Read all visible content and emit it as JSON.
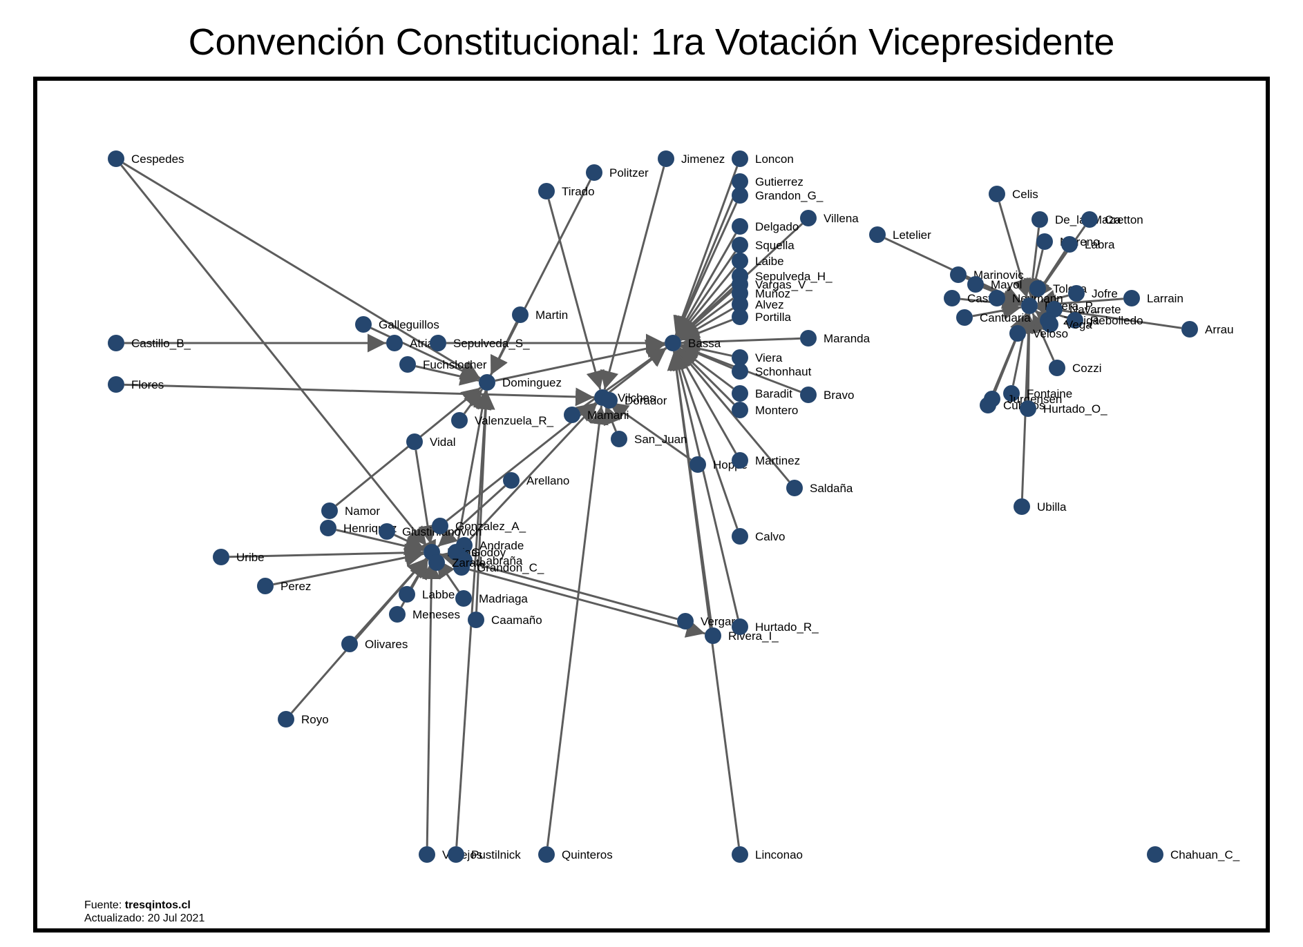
{
  "title": "Convención Constitucional: 1ra Votación Vicepresidente",
  "source": {
    "label": "Fuente: ",
    "site": "tresqintos.cl",
    "updated": "Actualizado: 20 Jul 2021"
  },
  "colors": {
    "node": "#25466e",
    "edge": "#5c5c5c"
  },
  "nodes": [
    {
      "id": "Cespedes",
      "label": "Cespedes"
    },
    {
      "id": "Castillo_B_",
      "label": "Castillo_B_"
    },
    {
      "id": "Flores",
      "label": "Flores"
    },
    {
      "id": "Galleguillos",
      "label": "Galleguillos"
    },
    {
      "id": "Atria",
      "label": "Atria"
    },
    {
      "id": "Sepulveda_S_",
      "label": "Sepulveda_S_"
    },
    {
      "id": "Fuchslocher",
      "label": "Fuchslocher"
    },
    {
      "id": "Dominguez",
      "label": "Dominguez"
    },
    {
      "id": "Martin",
      "label": "Martin"
    },
    {
      "id": "Politzer",
      "label": "Politzer"
    },
    {
      "id": "Tirado",
      "label": "Tirado"
    },
    {
      "id": "Jimenez",
      "label": "Jimenez"
    },
    {
      "id": "Loncon",
      "label": "Loncon"
    },
    {
      "id": "Gutierrez",
      "label": "Gutierrez"
    },
    {
      "id": "Grandon_G_",
      "label": "Grandon_G_"
    },
    {
      "id": "Villena",
      "label": "Villena"
    },
    {
      "id": "Delgado",
      "label": "Delgado"
    },
    {
      "id": "Squella",
      "label": "Squella"
    },
    {
      "id": "Labe",
      "label": "Laibe"
    },
    {
      "id": "Sepulveda_H_",
      "label": "Sepulveda_H_"
    },
    {
      "id": "Vargas_V_",
      "label": "Vargas_V_"
    },
    {
      "id": "Munoz",
      "label": "Muñoz"
    },
    {
      "id": "Alvez",
      "label": "Alvez"
    },
    {
      "id": "Portilla",
      "label": "Portilla"
    },
    {
      "id": "Bassa",
      "label": "Bassa"
    },
    {
      "id": "Maranda",
      "label": "Maranda"
    },
    {
      "id": "Bravo",
      "label": "Bravo"
    },
    {
      "id": "Baradit",
      "label": "Baradit"
    },
    {
      "id": "Montero",
      "label": "Montero"
    },
    {
      "id": "Viera",
      "label": "Viera"
    },
    {
      "id": "Schonhaut",
      "label": "Schonhaut"
    },
    {
      "id": "Villalobos",
      "label": "Vilches"
    },
    {
      "id": "Dorador",
      "label": "Dorador"
    },
    {
      "id": "Mamani",
      "label": "Mamani"
    },
    {
      "id": "San_Juan",
      "label": "San_Juan"
    },
    {
      "id": "Valenzuela_R_",
      "label": "Valenzuela_R_"
    },
    {
      "id": "Vidal",
      "label": "Vidal"
    },
    {
      "id": "Hoppe",
      "label": "Hoppe"
    },
    {
      "id": "Martinez",
      "label": "Martinez"
    },
    {
      "id": "Saldana",
      "label": "Saldaña"
    },
    {
      "id": "Calvo",
      "label": "Calvo"
    },
    {
      "id": "Arellano",
      "label": "Arellano"
    },
    {
      "id": "Namor",
      "label": "Namor"
    },
    {
      "id": "Henriquez",
      "label": "Henriquez"
    },
    {
      "id": "Giustinianovich",
      "label": "Giustinianovich"
    },
    {
      "id": "Gonzalez_A_",
      "label": "Gonzalez_A_"
    },
    {
      "id": "Andrade",
      "label": "Andrade"
    },
    {
      "id": "Rojas",
      "label": "Rojas"
    },
    {
      "id": "Godoy",
      "label": "Godoy"
    },
    {
      "id": "Labrana",
      "label": "Labraña"
    },
    {
      "id": "Grandon_C_",
      "label": "Grandon_C_"
    },
    {
      "id": "Zarate",
      "label": "Zarate"
    },
    {
      "id": "Uribe",
      "label": "Uribe"
    },
    {
      "id": "Perez",
      "label": "Perez"
    },
    {
      "id": "Labbe",
      "label": "Labbe"
    },
    {
      "id": "Madriaga",
      "label": "Madriaga"
    },
    {
      "id": "Meneses",
      "label": "Meneses"
    },
    {
      "id": "Caamano",
      "label": "Caamaño"
    },
    {
      "id": "Olivares",
      "label": "Olivares"
    },
    {
      "id": "Royo",
      "label": "Royo"
    },
    {
      "id": "Vergara",
      "label": "Vergara"
    },
    {
      "id": "Rivera_I_",
      "label": "Rivera_I_"
    },
    {
      "id": "Hurtado_R_",
      "label": "Hurtado_R_"
    },
    {
      "id": "Vallejos",
      "label": "Vallejos"
    },
    {
      "id": "Pustilnick",
      "label": "Pustilnick"
    },
    {
      "id": "Quinteros",
      "label": "Quinteros"
    },
    {
      "id": "Linconao",
      "label": "Linconao"
    },
    {
      "id": "Letelier",
      "label": "Letelier"
    },
    {
      "id": "Celis",
      "label": "Celis"
    },
    {
      "id": "De_la_Maza",
      "label": "De_la_Maza"
    },
    {
      "id": "Cretton",
      "label": "Cretton"
    },
    {
      "id": "Moreno",
      "label": "Moreno"
    },
    {
      "id": "Labra",
      "label": "Labra"
    },
    {
      "id": "Marinovic",
      "label": "Marinovic"
    },
    {
      "id": "Mayol",
      "label": "Mayol"
    },
    {
      "id": "Castro",
      "label": "Castro"
    },
    {
      "id": "Neumann",
      "label": "Neumann"
    },
    {
      "id": "Toloza",
      "label": "Toloza"
    },
    {
      "id": "Jofre",
      "label": "Jofre"
    },
    {
      "id": "Larrain",
      "label": "Larrain"
    },
    {
      "id": "Rivera_P_",
      "label": "Rivera_P_"
    },
    {
      "id": "Navarrete",
      "label": "Navarrete"
    },
    {
      "id": "Cantuaria",
      "label": "Cantuaria"
    },
    {
      "id": "Zuniga",
      "label": "Zuñiga"
    },
    {
      "id": "Rebolledo",
      "label": "Rebolledo"
    },
    {
      "id": "Vega",
      "label": "Vega"
    },
    {
      "id": "Veloso",
      "label": "Veloso"
    },
    {
      "id": "Arrau",
      "label": "Arrau"
    },
    {
      "id": "Cozzi",
      "label": "Cozzi"
    },
    {
      "id": "Fontaine",
      "label": "Fontaine"
    },
    {
      "id": "Jurgensen",
      "label": "Jurgensen"
    },
    {
      "id": "Cubillos",
      "label": "Cubillos"
    },
    {
      "id": "Hurtado_O_",
      "label": "Hurtado_O_"
    },
    {
      "id": "Ubilla",
      "label": "Ubilla"
    },
    {
      "id": "Chahuan_C_",
      "label": "Chahuan_C_"
    }
  ],
  "edges": [
    [
      "Castillo_B_",
      "Atria"
    ],
    [
      "Flores",
      "Villalobos"
    ],
    [
      "Galleguillos",
      "Dominguez"
    ],
    [
      "Sepulveda_S_",
      "Bassa"
    ],
    [
      "Fuchslocher",
      "Dominguez"
    ],
    [
      "Dominguez",
      "Bassa"
    ],
    [
      "Martin",
      "Dominguez"
    ],
    [
      "Politzer",
      "Dominguez"
    ],
    [
      "Tirado",
      "Villalobos"
    ],
    [
      "Jimenez",
      "Villalobos"
    ],
    [
      "Cespedes",
      "Rojas"
    ],
    [
      "Cespedes",
      "Dominguez"
    ],
    [
      "Loncon",
      "Bassa"
    ],
    [
      "Gutierrez",
      "Bassa"
    ],
    [
      "Grandon_G_",
      "Bassa"
    ],
    [
      "Delgado",
      "Bassa"
    ],
    [
      "Squella",
      "Bassa"
    ],
    [
      "Labe",
      "Bassa"
    ],
    [
      "Sepulveda_H_",
      "Bassa"
    ],
    [
      "Vargas_V_",
      "Bassa"
    ],
    [
      "Munoz",
      "Bassa"
    ],
    [
      "Alvez",
      "Bassa"
    ],
    [
      "Portilla",
      "Bassa"
    ],
    [
      "Viera",
      "Bassa"
    ],
    [
      "Schonhaut",
      "Bassa"
    ],
    [
      "Baradit",
      "Bassa"
    ],
    [
      "Montero",
      "Bassa"
    ],
    [
      "Villena",
      "Bassa"
    ],
    [
      "Maranda",
      "Bassa"
    ],
    [
      "Bravo",
      "Bassa"
    ],
    [
      "Villalobos",
      "Bassa"
    ],
    [
      "Mamani",
      "Bassa"
    ],
    [
      "San_Juan",
      "Villalobos"
    ],
    [
      "Valenzuela_R_",
      "Dominguez"
    ],
    [
      "Vidal",
      "Rojas"
    ],
    [
      "Hoppe",
      "Villalobos"
    ],
    [
      "Martinez",
      "Bassa"
    ],
    [
      "Saldana",
      "Bassa"
    ],
    [
      "Calvo",
      "Bassa"
    ],
    [
      "Arellano",
      "Rojas"
    ],
    [
      "Namor",
      "Dominguez"
    ],
    [
      "Henriquez",
      "Rojas"
    ],
    [
      "Giustinianovich",
      "Rojas"
    ],
    [
      "Gonzalez_A_",
      "Villalobos"
    ],
    [
      "Andrade",
      "Villalobos"
    ],
    [
      "Godoy",
      "Dominguez"
    ],
    [
      "Labrana",
      "Rojas"
    ],
    [
      "Grandon_C_",
      "Rivera_I_"
    ],
    [
      "Zarate",
      "Rojas"
    ],
    [
      "Uribe",
      "Rojas"
    ],
    [
      "Perez",
      "Rojas"
    ],
    [
      "Labbe",
      "Rojas"
    ],
    [
      "Madriaga",
      "Rojas"
    ],
    [
      "Meneses",
      "Rojas"
    ],
    [
      "Caamano",
      "Dominguez"
    ],
    [
      "Olivares",
      "Rojas"
    ],
    [
      "Royo",
      "Rojas"
    ],
    [
      "Vergara",
      "Rojas"
    ],
    [
      "Rivera_I_",
      "Bassa"
    ],
    [
      "Hurtado_R_",
      "Bassa"
    ],
    [
      "Vallejos",
      "Rojas"
    ],
    [
      "Pustilnick",
      "Dominguez"
    ],
    [
      "Quinteros",
      "Villalobos"
    ],
    [
      "Linconao",
      "Bassa"
    ],
    [
      "Letelier",
      "Rivera_P_"
    ],
    [
      "Celis",
      "Rivera_P_"
    ],
    [
      "De_la_Maza",
      "Rivera_P_"
    ],
    [
      "Cretton",
      "Rivera_P_"
    ],
    [
      "Moreno",
      "Rivera_P_"
    ],
    [
      "Labra",
      "Rivera_P_"
    ],
    [
      "Marinovic",
      "Rivera_P_"
    ],
    [
      "Mayol",
      "Rivera_P_"
    ],
    [
      "Castro",
      "Rivera_P_"
    ],
    [
      "Neumann",
      "Rivera_P_"
    ],
    [
      "Toloza",
      "Rivera_P_"
    ],
    [
      "Jofre",
      "Rivera_P_"
    ],
    [
      "Larrain",
      "Rivera_P_"
    ],
    [
      "Navarrete",
      "Rivera_P_"
    ],
    [
      "Cantuaria",
      "Rivera_P_"
    ],
    [
      "Zuniga",
      "Rivera_P_"
    ],
    [
      "Rebolledo",
      "Rivera_P_"
    ],
    [
      "Vega",
      "Rivera_P_"
    ],
    [
      "Veloso",
      "Rivera_P_"
    ],
    [
      "Arrau",
      "Rivera_P_"
    ],
    [
      "Cozzi",
      "Rivera_P_"
    ],
    [
      "Fontaine",
      "Rivera_P_"
    ],
    [
      "Jurgensen",
      "Rivera_P_"
    ],
    [
      "Cubillos",
      "Rivera_P_"
    ],
    [
      "Hurtado_O_",
      "Rivera_P_"
    ],
    [
      "Ubilla",
      "Rivera_P_"
    ]
  ]
}
